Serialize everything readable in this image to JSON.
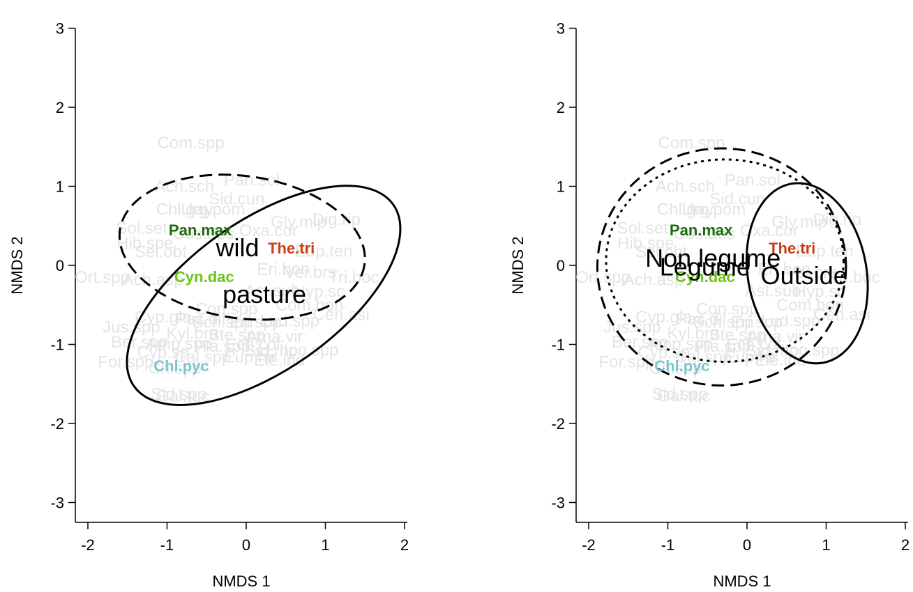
{
  "chart_data": [
    {
      "type": "scatter",
      "panel": "left",
      "title": "",
      "xlabel": "NMDS 1",
      "ylabel": "NMDS 2",
      "xlim": [
        -2.2,
        2.2
      ],
      "ylim": [
        -3.25,
        3.25
      ],
      "xticks": [
        "-2",
        "-1",
        "0",
        "1",
        "2"
      ],
      "yticks": [
        "-3",
        "-2",
        "-1",
        "0",
        "1",
        "2",
        "3"
      ],
      "background_species": [
        {
          "label": "Com.spp",
          "x": -0.7,
          "y": 1.55
        },
        {
          "label": "Ach.sch",
          "x": -0.78,
          "y": 1.0
        },
        {
          "label": "Pan.sol",
          "x": 0.07,
          "y": 1.08
        },
        {
          "label": "Sid.cun",
          "x": -0.12,
          "y": 0.84
        },
        {
          "label": "Chl.gay",
          "x": -0.78,
          "y": 0.71
        },
        {
          "label": "Urg.pom",
          "x": -0.42,
          "y": 0.71
        },
        {
          "label": "Gly.mip",
          "x": 0.66,
          "y": 0.55
        },
        {
          "label": "Dig.rip",
          "x": 1.14,
          "y": 0.58
        },
        {
          "label": "Sol.set",
          "x": -1.32,
          "y": 0.47
        },
        {
          "label": "Oxa.cor",
          "x": 0.28,
          "y": 0.44
        },
        {
          "label": "Hib.spe",
          "x": -1.28,
          "y": 0.28
        },
        {
          "label": "Sel.obt",
          "x": -1.08,
          "y": 0.17
        },
        {
          "label": "Cus.des",
          "x": -0.54,
          "y": 0.4
        },
        {
          "label": "Eup.ten",
          "x": 0.98,
          "y": 0.18
        },
        {
          "label": "Ort.spp",
          "x": -1.82,
          "y": -0.15
        },
        {
          "label": "Ach.asp",
          "x": -1.18,
          "y": -0.18
        },
        {
          "label": "Eri.bon",
          "x": 0.47,
          "y": -0.05
        },
        {
          "label": "Ver.brs",
          "x": 0.81,
          "y": -0.09
        },
        {
          "label": "Tri.boc",
          "x": 1.36,
          "y": -0.15
        },
        {
          "label": "Ast.sub",
          "x": 0.33,
          "y": -0.32
        },
        {
          "label": "Hyp.sc",
          "x": 0.92,
          "y": -0.33
        },
        {
          "label": "Con.spp",
          "x": -0.25,
          "y": -0.55
        },
        {
          "label": "Com.bon",
          "x": 0.8,
          "y": -0.5
        },
        {
          "label": "Cyp.gla",
          "x": -1.05,
          "y": -0.65
        },
        {
          "label": "Pas.dil",
          "x": -0.58,
          "y": -0.68
        },
        {
          "label": "Sch.spp",
          "x": -0.3,
          "y": -0.72
        },
        {
          "label": "Eri.spp",
          "x": 0.12,
          "y": -0.72
        },
        {
          "label": "Lud.spp",
          "x": 0.55,
          "y": -0.7
        },
        {
          "label": "Cen.asi",
          "x": 1.2,
          "y": -0.62
        },
        {
          "label": "Jus.spp",
          "x": -1.45,
          "y": -0.78
        },
        {
          "label": "Kyl.bre",
          "x": -0.68,
          "y": -0.86
        },
        {
          "label": "Ste.spp",
          "x": -0.12,
          "y": -0.88
        },
        {
          "label": "Ama.vir",
          "x": 0.36,
          "y": -0.9
        },
        {
          "label": "Ber.spp",
          "x": -1.35,
          "y": -0.97
        },
        {
          "label": "Amp.spp",
          "x": -0.85,
          "y": -0.99
        },
        {
          "label": "Pla.spp",
          "x": -0.3,
          "y": -1.02
        },
        {
          "label": "Ech.col",
          "x": 0.08,
          "y": -1.0
        },
        {
          "label": "Cyp.sp",
          "x": -1.05,
          "y": -1.1
        },
        {
          "label": "Sid.rho",
          "x": 0.32,
          "y": -1.08
        },
        {
          "label": "Cal.spp",
          "x": -0.55,
          "y": -1.16
        },
        {
          "label": "Eup.hir",
          "x": 0.05,
          "y": -1.16
        },
        {
          "label": "Ele.ind",
          "x": 0.42,
          "y": -1.2
        },
        {
          "label": "Ipo.spp",
          "x": 0.82,
          "y": -1.07
        },
        {
          "label": "For.spp",
          "x": -1.52,
          "y": -1.22
        },
        {
          "label": "Cri.spp",
          "x": -0.9,
          "y": -1.3
        },
        {
          "label": "Sid.spp",
          "x": -0.85,
          "y": -1.63
        },
        {
          "label": "Gal.tuc",
          "x": -0.8,
          "y": -1.65
        }
      ],
      "highlight_species": [
        {
          "label": "Pan.max",
          "x": -0.58,
          "y": 0.45,
          "color": "#1e6b0e"
        },
        {
          "label": "The.tri",
          "x": 0.57,
          "y": 0.22,
          "color": "#cc3d14"
        },
        {
          "label": "Cyn.dac",
          "x": -0.53,
          "y": -0.14,
          "color": "#6bc41a"
        },
        {
          "label": "Chl.pyc",
          "x": -0.82,
          "y": -1.27,
          "color": "#7bc4cf"
        }
      ],
      "group_labels": [
        {
          "label": "wild",
          "x": -0.11,
          "y": 0.22
        },
        {
          "label": "pasture",
          "x": 0.23,
          "y": -0.37
        }
      ],
      "ellipses": [
        {
          "group": "wild",
          "cx": -0.05,
          "cy": 0.23,
          "rx": 1.56,
          "ry": 0.9,
          "angle_deg": -8,
          "line": "dashed"
        },
        {
          "group": "pasture",
          "cx": 0.22,
          "cy": -0.38,
          "rx": 2.0,
          "ry": 0.95,
          "angle_deg": 35,
          "line": "solid"
        }
      ]
    },
    {
      "type": "scatter",
      "panel": "right",
      "title": "",
      "xlabel": "NMDS 1",
      "ylabel": "NMDS 2",
      "xlim": [
        -2.2,
        2.2
      ],
      "ylim": [
        -3.25,
        3.25
      ],
      "xticks": [
        "-2",
        "-1",
        "0",
        "1",
        "2"
      ],
      "yticks": [
        "-3",
        "-2",
        "-1",
        "0",
        "1",
        "2",
        "3"
      ],
      "background_species": [
        {
          "label": "Com.spp",
          "x": -0.7,
          "y": 1.55
        },
        {
          "label": "Ach.sch",
          "x": -0.78,
          "y": 1.0
        },
        {
          "label": "Pan.sol",
          "x": 0.07,
          "y": 1.08
        },
        {
          "label": "Sid.cun",
          "x": -0.12,
          "y": 0.84
        },
        {
          "label": "Chl.gay",
          "x": -0.78,
          "y": 0.71
        },
        {
          "label": "Urg.pom",
          "x": -0.42,
          "y": 0.71
        },
        {
          "label": "Gly.mip",
          "x": 0.66,
          "y": 0.55
        },
        {
          "label": "Dig.rip",
          "x": 1.14,
          "y": 0.58
        },
        {
          "label": "Sol.set",
          "x": -1.32,
          "y": 0.47
        },
        {
          "label": "Oxa.cor",
          "x": 0.28,
          "y": 0.44
        },
        {
          "label": "Hib.spe",
          "x": -1.28,
          "y": 0.28
        },
        {
          "label": "Sel.obt",
          "x": -1.08,
          "y": 0.17
        },
        {
          "label": "Cus.des",
          "x": -0.54,
          "y": 0.4
        },
        {
          "label": "Eup.ten",
          "x": 0.98,
          "y": 0.18
        },
        {
          "label": "Ort.spp",
          "x": -1.82,
          "y": -0.15
        },
        {
          "label": "Ach.asp",
          "x": -1.18,
          "y": -0.18
        },
        {
          "label": "Eri.bon",
          "x": 0.47,
          "y": -0.05
        },
        {
          "label": "Ver.brs",
          "x": 0.81,
          "y": -0.09
        },
        {
          "label": "Tri.boc",
          "x": 1.36,
          "y": -0.15
        },
        {
          "label": "Ast.sub",
          "x": 0.33,
          "y": -0.32
        },
        {
          "label": "Hyp.sc",
          "x": 0.92,
          "y": -0.33
        },
        {
          "label": "Con.spp",
          "x": -0.25,
          "y": -0.55
        },
        {
          "label": "Com.bon",
          "x": 0.8,
          "y": -0.5
        },
        {
          "label": "Cyp.gla",
          "x": -1.05,
          "y": -0.65
        },
        {
          "label": "Pas.dil",
          "x": -0.58,
          "y": -0.68
        },
        {
          "label": "Sch.spp",
          "x": -0.3,
          "y": -0.72
        },
        {
          "label": "Eri.spp",
          "x": 0.12,
          "y": -0.72
        },
        {
          "label": "Lud.spp",
          "x": 0.55,
          "y": -0.7
        },
        {
          "label": "Cen.asi",
          "x": 1.2,
          "y": -0.62
        },
        {
          "label": "Jus.spp",
          "x": -1.45,
          "y": -0.78
        },
        {
          "label": "Kyl.bre",
          "x": -0.68,
          "y": -0.86
        },
        {
          "label": "Ste.spp",
          "x": -0.12,
          "y": -0.88
        },
        {
          "label": "Ama.vir",
          "x": 0.36,
          "y": -0.9
        },
        {
          "label": "Ber.spp",
          "x": -1.35,
          "y": -0.97
        },
        {
          "label": "Amp.spp",
          "x": -0.85,
          "y": -0.99
        },
        {
          "label": "Pla.spp",
          "x": -0.3,
          "y": -1.02
        },
        {
          "label": "Ech.col",
          "x": 0.08,
          "y": -1.0
        },
        {
          "label": "Cyp.sp",
          "x": -1.05,
          "y": -1.1
        },
        {
          "label": "Sid.rho",
          "x": 0.32,
          "y": -1.08
        },
        {
          "label": "Cal.spp",
          "x": -0.55,
          "y": -1.16
        },
        {
          "label": "Eup.hir",
          "x": 0.05,
          "y": -1.16
        },
        {
          "label": "Ele.ind",
          "x": 0.42,
          "y": -1.2
        },
        {
          "label": "Ipo.spp",
          "x": 0.82,
          "y": -1.07
        },
        {
          "label": "For.spp",
          "x": -1.52,
          "y": -1.22
        },
        {
          "label": "Cri.spp",
          "x": -0.9,
          "y": -1.3
        },
        {
          "label": "Sid.spp",
          "x": -0.85,
          "y": -1.63
        },
        {
          "label": "Gal.tuc",
          "x": -0.8,
          "y": -1.65
        }
      ],
      "highlight_species": [
        {
          "label": "Pan.max",
          "x": -0.58,
          "y": 0.45,
          "color": "#1e6b0e"
        },
        {
          "label": "The.tri",
          "x": 0.57,
          "y": 0.22,
          "color": "#cc3d14"
        },
        {
          "label": "Cyn.dac",
          "x": -0.53,
          "y": -0.14,
          "color": "#6bc41a"
        },
        {
          "label": "Chl.pyc",
          "x": -0.82,
          "y": -1.27,
          "color": "#7bc4cf"
        }
      ],
      "group_labels": [
        {
          "label": "Non legume",
          "x": -0.43,
          "y": 0.09
        },
        {
          "label": "Legume",
          "x": -0.53,
          "y": -0.02
        },
        {
          "label": "Outside",
          "x": 0.72,
          "y": -0.13
        }
      ],
      "ellipses": [
        {
          "group": "Non legume",
          "cx": -0.32,
          "cy": -0.02,
          "rx": 1.57,
          "ry": 1.5,
          "angle_deg": 0,
          "line": "dashed"
        },
        {
          "group": "Legume",
          "cx": -0.28,
          "cy": 0.06,
          "rx": 1.5,
          "ry": 1.28,
          "angle_deg": 0,
          "line": "dotted"
        },
        {
          "group": "Outside",
          "cx": 0.76,
          "cy": -0.1,
          "rx": 0.75,
          "ry": 1.15,
          "angle_deg": 10,
          "line": "solid"
        }
      ]
    }
  ]
}
